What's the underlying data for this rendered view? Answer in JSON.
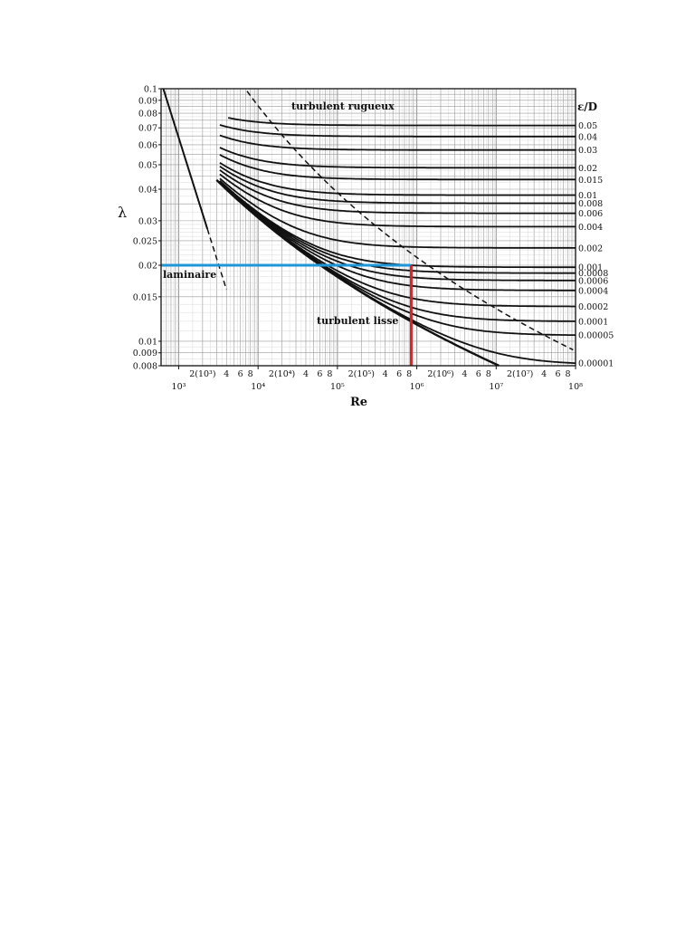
{
  "chart_data": {
    "type": "line",
    "title": "",
    "xlabel": "Re",
    "ylabel": "λ",
    "right_axis_label": "ε/D",
    "x_scale": "log",
    "y_scale": "log",
    "xlim": [
      600,
      100000000
    ],
    "ylim": [
      0.008,
      0.1
    ],
    "grid": true,
    "y_tick_labels": [
      "0.1",
      "0.09",
      "0.08",
      "0.07",
      "0.06",
      "0.05",
      "0.04",
      "0.03",
      "0.025",
      "0.02",
      "0.015",
      "0.01",
      "0.009",
      "0.008"
    ],
    "x_tick_labels": [
      {
        "x": 2000,
        "text": "2(10³)"
      },
      {
        "x": 4000,
        "text": "4"
      },
      {
        "x": 6000,
        "text": "6"
      },
      {
        "x": 8000,
        "text": "8"
      },
      {
        "x": 20000,
        "text": "2(10⁴)"
      },
      {
        "x": 40000,
        "text": "4"
      },
      {
        "x": 60000,
        "text": "6"
      },
      {
        "x": 80000,
        "text": "8"
      },
      {
        "x": 200000,
        "text": "2(10⁵)"
      },
      {
        "x": 400000,
        "text": "4"
      },
      {
        "x": 600000,
        "text": "6"
      },
      {
        "x": 800000,
        "text": "8"
      },
      {
        "x": 2000000,
        "text": "2(10⁶)"
      },
      {
        "x": 4000000,
        "text": "4"
      },
      {
        "x": 6000000,
        "text": "6"
      },
      {
        "x": 8000000,
        "text": "8"
      },
      {
        "x": 20000000,
        "text": "2(10⁷)"
      },
      {
        "x": 40000000,
        "text": "4"
      },
      {
        "x": 60000000,
        "text": "6"
      },
      {
        "x": 80000000,
        "text": "8"
      }
    ],
    "x_decade_labels": [
      {
        "x": 1000,
        "text": "10³"
      },
      {
        "x": 10000,
        "text": "10⁴"
      },
      {
        "x": 100000,
        "text": "10⁵"
      },
      {
        "x": 1000000,
        "text": "10⁶"
      },
      {
        "x": 10000000,
        "text": "10⁷"
      },
      {
        "x": 100000000,
        "text": "10⁸"
      }
    ],
    "relative_roughness": [
      {
        "label": "0.05",
        "eps": 0.05
      },
      {
        "label": "0.04",
        "eps": 0.04
      },
      {
        "label": "0.03",
        "eps": 0.03
      },
      {
        "label": "0.02",
        "eps": 0.02
      },
      {
        "label": "0.015",
        "eps": 0.015
      },
      {
        "label": "0.01",
        "eps": 0.01
      },
      {
        "label": "0.008",
        "eps": 0.008
      },
      {
        "label": "0.006",
        "eps": 0.006
      },
      {
        "label": "0.004",
        "eps": 0.004
      },
      {
        "label": "0.002",
        "eps": 0.002
      },
      {
        "label": "0.001",
        "eps": 0.001
      },
      {
        "label": "0.0008",
        "eps": 0.0008
      },
      {
        "label": "0.0006",
        "eps": 0.0006
      },
      {
        "label": "0.0004",
        "eps": 0.0004
      },
      {
        "label": "0.0002",
        "eps": 0.0002
      },
      {
        "label": "0.0001",
        "eps": 0.0001
      },
      {
        "label": "0.00005",
        "eps": 5e-05
      },
      {
        "label": "0.00001",
        "eps": 1e-05
      }
    ],
    "laminar_line": {
      "formula": "lambda = 64/Re",
      "x_range": [
        640,
        4000
      ]
    },
    "smooth_line": {
      "x_range": [
        3000,
        100000000
      ]
    },
    "annotations": {
      "turbulent_rough": "turbulent rugueux",
      "laminar": "laminaire",
      "turbulent_smooth": "turbulent lisse"
    },
    "highlight": {
      "lambda": 0.02,
      "re": 850000,
      "horizontal_color": "#1e96d8",
      "vertical_color": "#e02020"
    }
  }
}
